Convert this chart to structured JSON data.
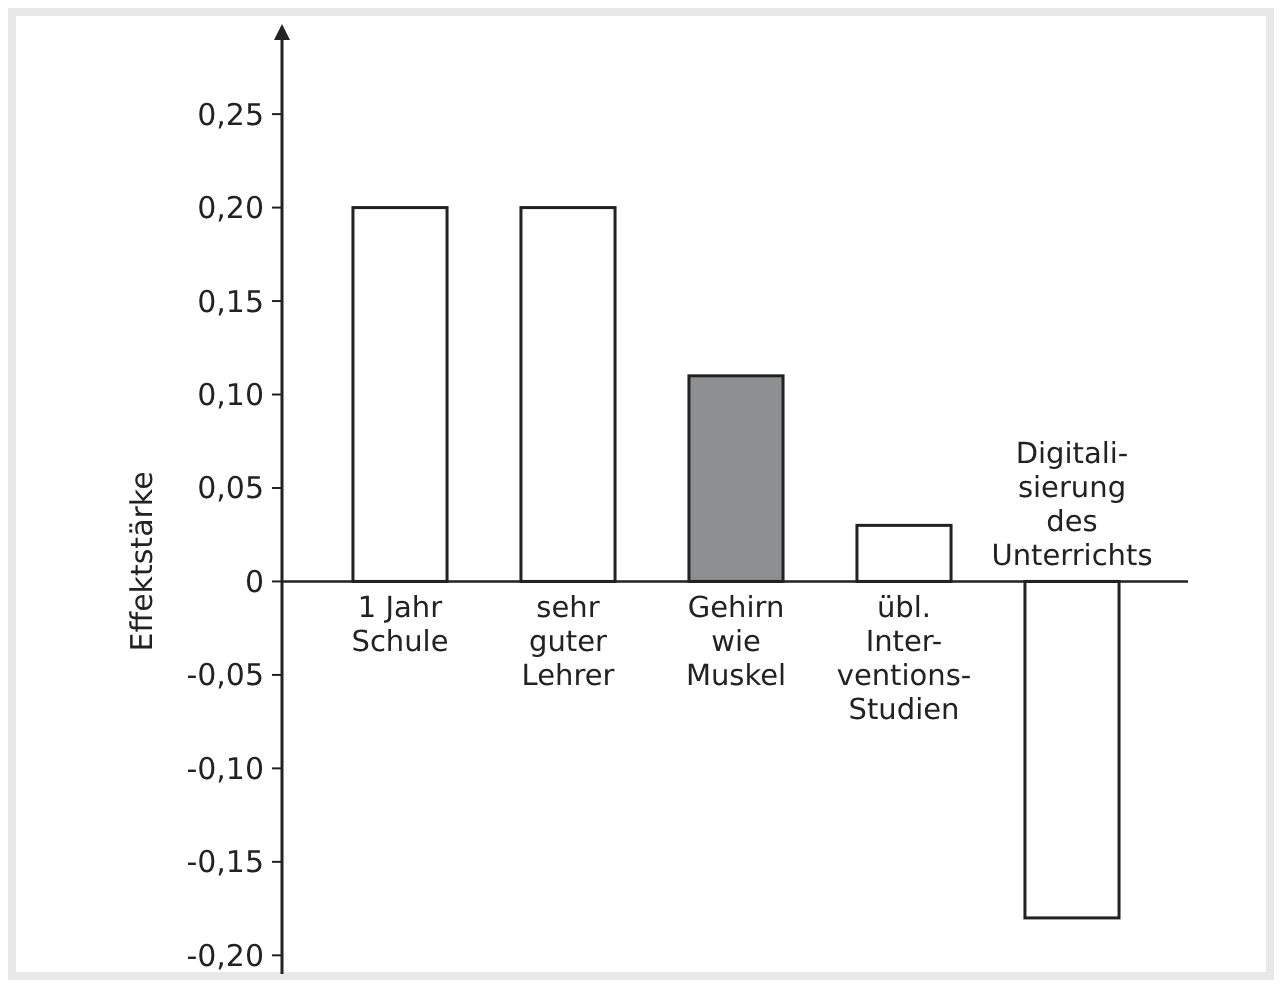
{
  "chart_data": {
    "type": "bar",
    "ylabel": "Effektstärke",
    "categories": [
      "1 Jahr\nSchule",
      "sehr\nguter\nLehrer",
      "Gehirn\nwie\nMuskel",
      "übl.\nInter-\nventions-\nStudien",
      "Digitali-\nsierung\ndes\nUnterrichts"
    ],
    "values": [
      0.2,
      0.2,
      0.11,
      0.03,
      -0.18
    ],
    "colors": [
      "#ffffff",
      "#ffffff",
      "#8e8f91",
      "#ffffff",
      "#ffffff"
    ],
    "ylim": [
      -0.21,
      0.295
    ],
    "yticks": [
      {
        "value": 0.25,
        "label": "0,25"
      },
      {
        "value": 0.2,
        "label": "0,20"
      },
      {
        "value": 0.15,
        "label": "0,15"
      },
      {
        "value": 0.1,
        "label": "0,10"
      },
      {
        "value": 0.05,
        "label": "0,05"
      },
      0,
      {
        "value": -0.05,
        "label": "-0,05"
      },
      {
        "value": -0.1,
        "label": "-0,10"
      },
      {
        "value": -0.15,
        "label": "-0,15"
      },
      {
        "value": -0.2,
        "label": "-0,20"
      }
    ],
    "grid": false
  }
}
